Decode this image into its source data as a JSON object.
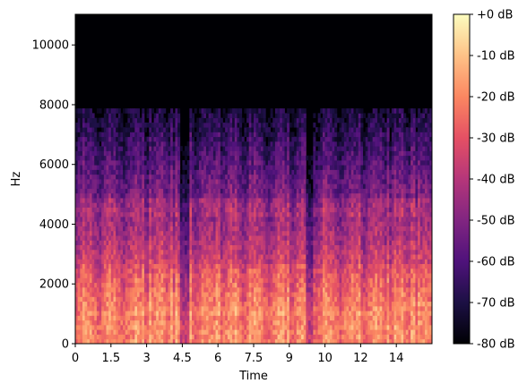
{
  "chart_data": {
    "type": "heatmap",
    "subtype": "spectrogram",
    "title": "",
    "xlabel": "Time",
    "ylabel": "Hz",
    "xlim": [
      0,
      15.0
    ],
    "ylim": [
      0,
      11025
    ],
    "x_ticks": [
      {
        "value": 0,
        "label": "0"
      },
      {
        "value": 1.5,
        "label": "1.5"
      },
      {
        "value": 3,
        "label": "3"
      },
      {
        "value": 4.5,
        "label": "4.5"
      },
      {
        "value": 6,
        "label": "6"
      },
      {
        "value": 7.5,
        "label": "7.5"
      },
      {
        "value": 9,
        "label": "9"
      },
      {
        "value": 10.5,
        "label": "10"
      },
      {
        "value": 12,
        "label": "12"
      },
      {
        "value": 13.5,
        "label": "14"
      }
    ],
    "y_ticks": [
      {
        "value": 0,
        "label": "0"
      },
      {
        "value": 2000,
        "label": "2000"
      },
      {
        "value": 4000,
        "label": "4000"
      },
      {
        "value": 6000,
        "label": "6000"
      },
      {
        "value": 8000,
        "label": "8000"
      },
      {
        "value": 10000,
        "label": "10000"
      }
    ],
    "colorbar": {
      "colormap": "magma",
      "range_db": [
        -80,
        0
      ],
      "ticks": [
        {
          "value": 0,
          "label": "+0 dB"
        },
        {
          "value": -10,
          "label": "-10 dB"
        },
        {
          "value": -20,
          "label": "-20 dB"
        },
        {
          "value": -30,
          "label": "-30 dB"
        },
        {
          "value": -40,
          "label": "-40 dB"
        },
        {
          "value": -50,
          "label": "-50 dB"
        },
        {
          "value": -60,
          "label": "-60 dB"
        },
        {
          "value": -70,
          "label": "-70 dB"
        },
        {
          "value": -80,
          "label": "-80 dB"
        }
      ]
    },
    "energy_cutoff_hz": 7800,
    "silent_gaps_s": [
      [
        4.4,
        4.8
      ],
      [
        9.7,
        10.0
      ]
    ],
    "colors": {
      "magma_stops": [
        "#000004",
        "#1c1044",
        "#4f127b",
        "#812581",
        "#b5367a",
        "#e55064",
        "#fb8761",
        "#fec287",
        "#fcfdbf"
      ]
    }
  }
}
